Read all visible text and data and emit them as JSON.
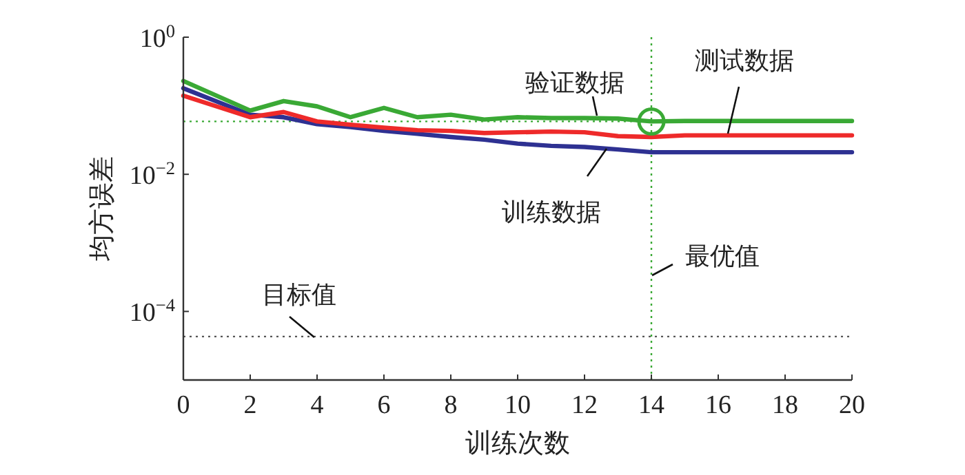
{
  "chart_data": {
    "type": "line",
    "xlabel": "训练次数",
    "ylabel": "均方误差",
    "log": "y",
    "xlim": [
      0,
      20
    ],
    "ylim": [
      1e-05,
      1
    ],
    "xticks": [
      0,
      2,
      4,
      6,
      8,
      10,
      12,
      14,
      16,
      18,
      20
    ],
    "yticks": [
      {
        "value": 1,
        "label": "10$^{0}$"
      },
      {
        "value": 0.01,
        "label": "10$^{−2}$"
      },
      {
        "value": 0.0001,
        "label": "10$^{−4}$"
      }
    ],
    "grid": false,
    "marker": "none",
    "line_style": "solid",
    "series": [
      {
        "name": "训练数据",
        "color": "#2e3192",
        "x": [
          0,
          2,
          3,
          4,
          5,
          6,
          7,
          8,
          9,
          10,
          11,
          12,
          13,
          14,
          15,
          20
        ],
        "values": [
          0.18,
          0.074,
          0.068,
          0.054,
          0.049,
          0.043,
          0.039,
          0.035,
          0.032,
          0.028,
          0.026,
          0.025,
          0.023,
          0.021,
          0.021,
          0.021
        ]
      },
      {
        "name": "验证数据",
        "color": "#3aa935",
        "x": [
          0,
          2,
          3,
          4,
          5,
          6,
          7,
          8,
          9,
          10,
          11,
          12,
          13,
          14,
          15,
          20
        ],
        "values": [
          0.23,
          0.085,
          0.117,
          0.098,
          0.068,
          0.093,
          0.068,
          0.074,
          0.063,
          0.068,
          0.066,
          0.066,
          0.065,
          0.059,
          0.06,
          0.06
        ]
      },
      {
        "name": "测试数据",
        "color": "#ee2a2a",
        "x": [
          0,
          2,
          3,
          4,
          5,
          6,
          7,
          8,
          9,
          10,
          11,
          12,
          13,
          14,
          15,
          20
        ],
        "values": [
          0.14,
          0.068,
          0.081,
          0.059,
          0.053,
          0.048,
          0.044,
          0.043,
          0.04,
          0.041,
          0.042,
          0.041,
          0.036,
          0.035,
          0.037,
          0.037
        ]
      },
      {
        "type": "scatter",
        "color": "#3aa935",
        "marker": "circle",
        "x": [
          14
        ],
        "values": [
          0.059
        ]
      }
    ],
    "ref_lines": [
      {
        "axis": "y",
        "value": 0.059,
        "color": "#3aa935",
        "line_style": "dotted"
      },
      {
        "axis": "x",
        "value": 14,
        "label": "最优值",
        "color": "#3aa935",
        "line_style": "dotted"
      },
      {
        "axis": "y",
        "value": 4.3e-05,
        "label": "目标值",
        "color": "#555555",
        "line_style": "dotted"
      }
    ]
  }
}
